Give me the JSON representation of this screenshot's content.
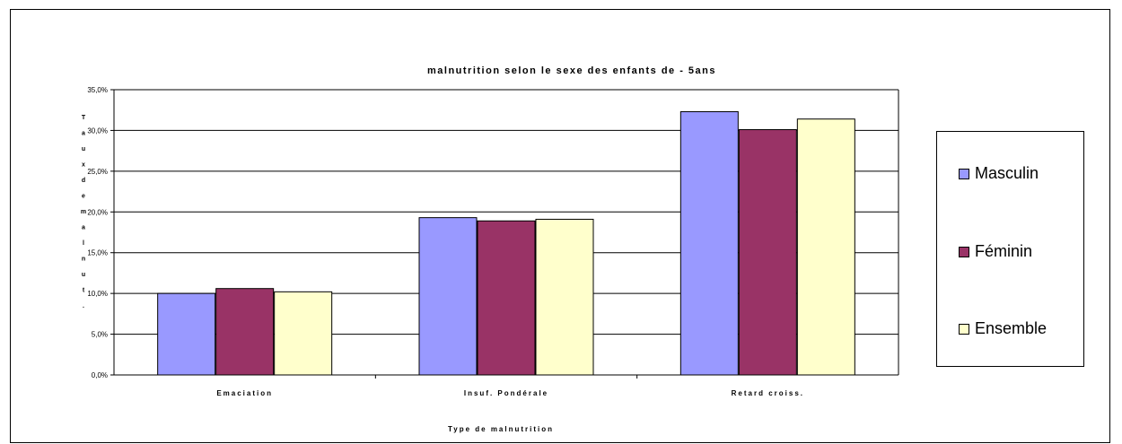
{
  "chart_data": {
    "type": "bar",
    "title": "malnutrition selon le sexe des enfants de - 5ans",
    "xlabel": "Type de malnutrition",
    "ylabel": "Taux de malnut.",
    "categories": [
      "Emaciation",
      "Insuf. Pondérale",
      "Retard croiss."
    ],
    "series": [
      {
        "name": "Masculin",
        "values": [
          10.0,
          19.3,
          32.3
        ],
        "color": "#9999ff"
      },
      {
        "name": "Féminin",
        "values": [
          10.6,
          18.9,
          30.1
        ],
        "color": "#993366"
      },
      {
        "name": "Ensemble",
        "values": [
          10.2,
          19.1,
          31.4
        ],
        "color": "#ffffcc"
      }
    ],
    "ylim": [
      0,
      35
    ],
    "yticks": [
      "0,0%",
      "5,0%",
      "10,0%",
      "15,0%",
      "20,0%",
      "25,0%",
      "30,0%",
      "35,0%"
    ],
    "grid": true,
    "legend_position": "right"
  }
}
